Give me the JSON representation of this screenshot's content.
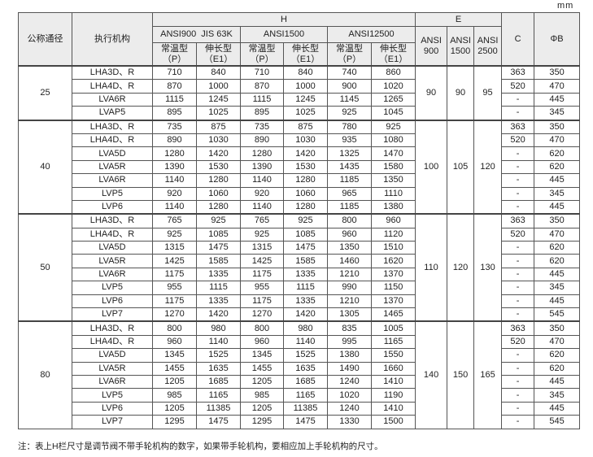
{
  "unit": "mm",
  "header": {
    "nominal_size": "公称通径",
    "actuator": "执行机构",
    "H": "H",
    "E": "E",
    "C": "C",
    "B": "ΦB",
    "h_groups": [
      "ANSI900  JIS 63K",
      "ANSI1500",
      "ANSI12500"
    ],
    "sub_p": "常温型\n（P）",
    "sub_e1": "伸长型\n（E1）",
    "e_cols": [
      "ANSI\n900",
      "ANSI\n1500",
      "ANSI\n2500"
    ]
  },
  "groups": [
    {
      "size": "25",
      "E": [
        "90",
        "90",
        "95"
      ],
      "rows": [
        [
          "LHA3D、R",
          "710",
          "840",
          "710",
          "840",
          "740",
          "860",
          "363",
          "350"
        ],
        [
          "LHA4D、R",
          "870",
          "1000",
          "870",
          "1000",
          "900",
          "1020",
          "520",
          "470"
        ],
        [
          "LVA6R",
          "1115",
          "1245",
          "1115",
          "1245",
          "1145",
          "1265",
          "-",
          "445"
        ],
        [
          "LVAP5",
          "895",
          "1025",
          "895",
          "1025",
          "925",
          "1045",
          "-",
          "345"
        ]
      ]
    },
    {
      "size": "40",
      "E": [
        "100",
        "105",
        "120"
      ],
      "rows": [
        [
          "LHA3D、R",
          "735",
          "875",
          "735",
          "875",
          "780",
          "925",
          "363",
          "350"
        ],
        [
          "LHA4D、R",
          "890",
          "1030",
          "890",
          "1030",
          "935",
          "1080",
          "520",
          "470"
        ],
        [
          "LVA5D",
          "1280",
          "1420",
          "1280",
          "1420",
          "1325",
          "1470",
          "-",
          "620"
        ],
        [
          "LVA5R",
          "1390",
          "1530",
          "1390",
          "1530",
          "1435",
          "1580",
          "-",
          "620"
        ],
        [
          "LVA6R",
          "1140",
          "1280",
          "1140",
          "1280",
          "1185",
          "1350",
          "-",
          "445"
        ],
        [
          "LVP5",
          "920",
          "1060",
          "920",
          "1060",
          "965",
          "1110",
          "-",
          "345"
        ],
        [
          "LVP6",
          "1140",
          "1280",
          "1140",
          "1280",
          "1185",
          "1380",
          "-",
          "445"
        ]
      ]
    },
    {
      "size": "50",
      "E": [
        "110",
        "120",
        "130"
      ],
      "rows": [
        [
          "LHA3D、R",
          "765",
          "925",
          "765",
          "925",
          "800",
          "960",
          "363",
          "350"
        ],
        [
          "LHA4D、R",
          "925",
          "1085",
          "925",
          "1085",
          "960",
          "1120",
          "520",
          "470"
        ],
        [
          "LVA5D",
          "1315",
          "1475",
          "1315",
          "1475",
          "1350",
          "1510",
          "-",
          "620"
        ],
        [
          "LVA5R",
          "1425",
          "1585",
          "1425",
          "1585",
          "1460",
          "1620",
          "-",
          "620"
        ],
        [
          "LVA6R",
          "1175",
          "1335",
          "1175",
          "1335",
          "1210",
          "1370",
          "-",
          "445"
        ],
        [
          "LVP5",
          "955",
          "1115",
          "955",
          "1115",
          "990",
          "1150",
          "-",
          "345"
        ],
        [
          "LVP6",
          "1175",
          "1335",
          "1175",
          "1335",
          "1210",
          "1370",
          "-",
          "445"
        ],
        [
          "LVP7",
          "1270",
          "1420",
          "1270",
          "1420",
          "1305",
          "1465",
          "-",
          "545"
        ]
      ]
    },
    {
      "size": "80",
      "E": [
        "140",
        "150",
        "165"
      ],
      "rows": [
        [
          "LHA3D、R",
          "800",
          "980",
          "800",
          "980",
          "835",
          "1005",
          "363",
          "350"
        ],
        [
          "LHA4D、R",
          "960",
          "1140",
          "960",
          "1140",
          "995",
          "1165",
          "520",
          "470"
        ],
        [
          "LVA5D",
          "1345",
          "1525",
          "1345",
          "1525",
          "1380",
          "1550",
          "-",
          "620"
        ],
        [
          "LVA5R",
          "1455",
          "1635",
          "1455",
          "1635",
          "1490",
          "1660",
          "-",
          "620"
        ],
        [
          "LVA6R",
          "1205",
          "1685",
          "1205",
          "1685",
          "1240",
          "1410",
          "-",
          "445"
        ],
        [
          "LVP5",
          "985",
          "1165",
          "985",
          "1165",
          "1020",
          "1190",
          "-",
          "345"
        ],
        [
          "LVP6",
          "1205",
          "11385",
          "1205",
          "11385",
          "1240",
          "1410",
          "-",
          "445"
        ],
        [
          "LVP7",
          "1295",
          "1475",
          "1295",
          "1475",
          "1330",
          "1500",
          "-",
          "545"
        ]
      ]
    }
  ],
  "note": "注：表上H栏尺寸是调节阀不带手轮机构的数字，如果带手轮机构，要相应加上手轮机构的尺寸。"
}
